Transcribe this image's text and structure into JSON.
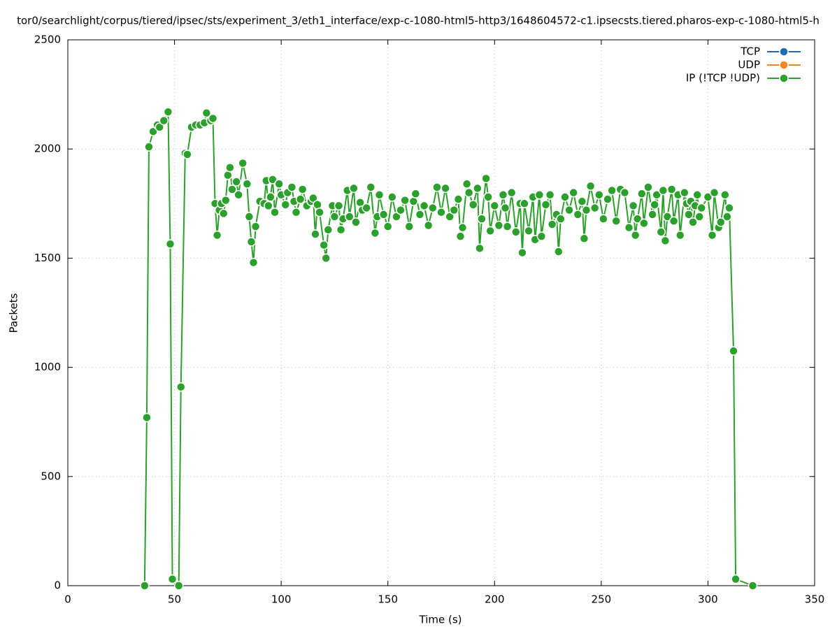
{
  "chart_data": {
    "type": "line",
    "title": "tor0/searchlight/corpus/tiered/ipsec/sts/experiment_3/eth1_interface/exp-c-1080-html5-http3/1648604572-c1.ipsecsts.tiered.pharos-exp-c-1080-html5-h",
    "x_label": "Time (s)",
    "y_label": "Packets",
    "xlim": [
      0,
      350
    ],
    "xticks": [
      0,
      50,
      100,
      150,
      200,
      250,
      300,
      350
    ],
    "ylim": [
      0,
      2500
    ],
    "yticks": [
      0,
      500,
      1000,
      1500,
      2000,
      2500
    ],
    "grid": true,
    "legend": "top-right",
    "series": [
      {
        "name": "TCP",
        "color": "#1f6db5",
        "x": [],
        "values": []
      },
      {
        "name": "UDP",
        "color": "#f5861f",
        "x": [],
        "values": []
      },
      {
        "name": "IP (!TCP  !UDP)",
        "color": "#2ca02c",
        "x": [
          36,
          37,
          38,
          40,
          42,
          43,
          45,
          47,
          48,
          49,
          52,
          53,
          55,
          56,
          58,
          60,
          62,
          64,
          65,
          67,
          68,
          69,
          70,
          71,
          72,
          73,
          74,
          75,
          76,
          77,
          79,
          80,
          82,
          84,
          85,
          86,
          87,
          88,
          90,
          92,
          93,
          94,
          95,
          96,
          97,
          99,
          100,
          102,
          103,
          105,
          106,
          107,
          109,
          110,
          112,
          114,
          115,
          116,
          117,
          118,
          120,
          121,
          122,
          124,
          125,
          127,
          128,
          129,
          131,
          132,
          134,
          135,
          137,
          138,
          140,
          142,
          144,
          145,
          146,
          148,
          150,
          152,
          154,
          156,
          158,
          160,
          162,
          163,
          165,
          167,
          169,
          171,
          173,
          175,
          177,
          179,
          181,
          183,
          184,
          185,
          187,
          188,
          190,
          192,
          193,
          194,
          196,
          197,
          198,
          200,
          202,
          204,
          205,
          206,
          208,
          210,
          212,
          213,
          214,
          216,
          218,
          219,
          221,
          222,
          224,
          226,
          227,
          229,
          230,
          231,
          233,
          235,
          237,
          239,
          241,
          242,
          243,
          245,
          247,
          249,
          251,
          253,
          255,
          257,
          259,
          261,
          263,
          265,
          266,
          267,
          269,
          270,
          272,
          274,
          275,
          276,
          278,
          279,
          280,
          281,
          283,
          284,
          286,
          287,
          289,
          290,
          291,
          292,
          293,
          294,
          295,
          296,
          297,
          300,
          302,
          303,
          305,
          306,
          308,
          309,
          310,
          312,
          313,
          321
        ],
        "values": [
          0,
          770,
          2010,
          2080,
          2110,
          2100,
          2130,
          2170,
          1565,
          30,
          0,
          910,
          1980,
          1975,
          2100,
          2110,
          2110,
          2120,
          2165,
          2130,
          2140,
          1750,
          1605,
          1720,
          1750,
          1705,
          1765,
          1880,
          1915,
          1815,
          1850,
          1790,
          1935,
          1840,
          1690,
          1575,
          1480,
          1645,
          1760,
          1750,
          1855,
          1740,
          1780,
          1860,
          1710,
          1840,
          1790,
          1745,
          1800,
          1825,
          1760,
          1710,
          1770,
          1815,
          1740,
          1760,
          1775,
          1610,
          1745,
          1710,
          1560,
          1500,
          1630,
          1740,
          1690,
          1740,
          1630,
          1680,
          1810,
          1690,
          1820,
          1665,
          1755,
          1720,
          1730,
          1825,
          1615,
          1690,
          1790,
          1700,
          1645,
          1780,
          1690,
          1720,
          1765,
          1645,
          1760,
          1795,
          1700,
          1740,
          1650,
          1730,
          1825,
          1710,
          1820,
          1690,
          1720,
          1770,
          1600,
          1640,
          1840,
          1800,
          1745,
          1820,
          1545,
          1680,
          1865,
          1780,
          1625,
          1740,
          1650,
          1790,
          1730,
          1645,
          1800,
          1620,
          1750,
          1525,
          1750,
          1625,
          1780,
          1585,
          1790,
          1600,
          1745,
          1790,
          1655,
          1700,
          1530,
          1680,
          1780,
          1720,
          1800,
          1700,
          1760,
          1590,
          1720,
          1830,
          1730,
          1790,
          1680,
          1770,
          1810,
          1670,
          1815,
          1800,
          1640,
          1740,
          1605,
          1680,
          1795,
          1660,
          1825,
          1700,
          1745,
          1790,
          1620,
          1810,
          1580,
          1690,
          1815,
          1670,
          1790,
          1605,
          1800,
          1750,
          1700,
          1760,
          1665,
          1740,
          1790,
          1690,
          1730,
          1780,
          1605,
          1800,
          1640,
          1665,
          1790,
          1690,
          1730,
          1075,
          30,
          0
        ]
      }
    ]
  }
}
